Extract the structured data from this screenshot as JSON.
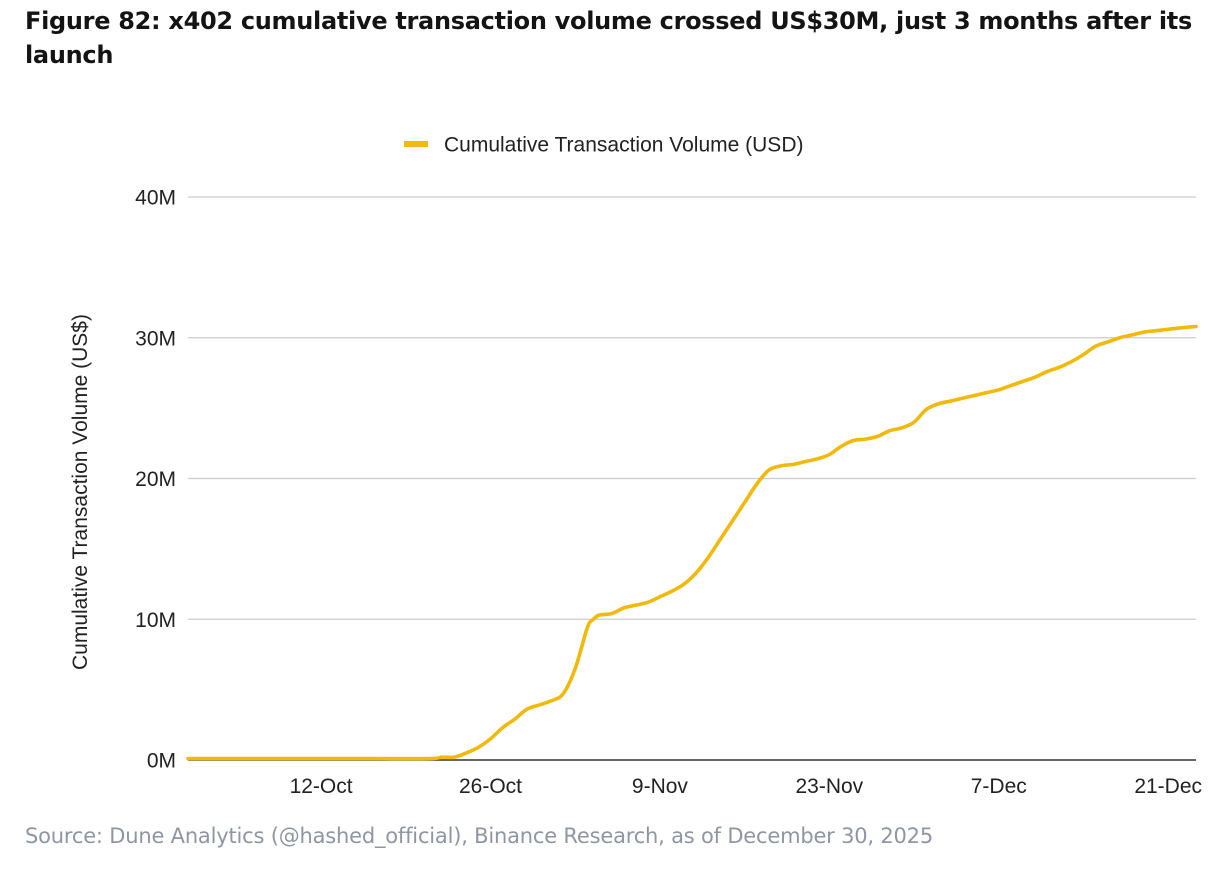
{
  "figure": {
    "title": "Figure 82: x402 cumulative transaction volume crossed US$30M, just 3 months after its launch",
    "source": "Source: Dune Analytics (@hashed_official), Binance Research, as of December 30, 2025"
  },
  "colors": {
    "line": "#F0B90B",
    "grid": "#CCCCCC",
    "axis": "#333333"
  },
  "chart_data": {
    "type": "line",
    "title": "",
    "xlabel": "",
    "ylabel": "Cumulative Transaction Volume (US$)",
    "legend": {
      "position": "top-center",
      "entries": [
        "Cumulative Transaction Volume (USD)"
      ]
    },
    "grid": true,
    "x_unit": "days since 1-Oct-2025",
    "xlim": [
      0,
      83.3
    ],
    "ylim": [
      0,
      40
    ],
    "y_unit": "M USD",
    "x_ticks": [
      {
        "label": "12-Oct",
        "value": 11
      },
      {
        "label": "26-Oct",
        "value": 25
      },
      {
        "label": "9-Nov",
        "value": 39
      },
      {
        "label": "23-Nov",
        "value": 53
      },
      {
        "label": "7-Dec",
        "value": 67
      },
      {
        "label": "21-Dec",
        "value": 81
      }
    ],
    "y_ticks": [
      {
        "label": "0M",
        "value": 0
      },
      {
        "label": "10M",
        "value": 10
      },
      {
        "label": "20M",
        "value": 20
      },
      {
        "label": "30M",
        "value": 30
      },
      {
        "label": "40M",
        "value": 40
      }
    ],
    "series": [
      {
        "name": "Cumulative Transaction Volume (USD)",
        "x": [
          0,
          5,
          10,
          15,
          20,
          21,
          22,
          23,
          24,
          25,
          26,
          27,
          28,
          29,
          30,
          31,
          32,
          33,
          33.5,
          34,
          35,
          36,
          37,
          38,
          39,
          40,
          41,
          42,
          43,
          44,
          45,
          46,
          47,
          48,
          49,
          50,
          51,
          52,
          53,
          54,
          55,
          56,
          57,
          58,
          59,
          60,
          61,
          62,
          63,
          64,
          65,
          66,
          67,
          68,
          69,
          70,
          71,
          72,
          73,
          74,
          75,
          76,
          77,
          78,
          79,
          80,
          81,
          82,
          83.3
        ],
        "values": [
          0.1,
          0.1,
          0.1,
          0.1,
          0.1,
          0.2,
          0.2,
          0.5,
          0.9,
          1.5,
          2.3,
          2.9,
          3.6,
          3.9,
          4.2,
          4.7,
          6.5,
          9.4,
          10.0,
          10.3,
          10.4,
          10.8,
          11.0,
          11.2,
          11.6,
          12.0,
          12.5,
          13.3,
          14.4,
          15.7,
          17.0,
          18.3,
          19.6,
          20.6,
          20.9,
          21.0,
          21.2,
          21.4,
          21.7,
          22.3,
          22.7,
          22.8,
          23.0,
          23.4,
          23.6,
          24.0,
          24.9,
          25.3,
          25.5,
          25.7,
          25.9,
          26.1,
          26.3,
          26.6,
          26.9,
          27.2,
          27.6,
          27.9,
          28.3,
          28.8,
          29.4,
          29.7,
          30.0,
          30.2,
          30.4,
          30.5,
          30.6,
          30.7,
          30.8
        ]
      }
    ]
  }
}
